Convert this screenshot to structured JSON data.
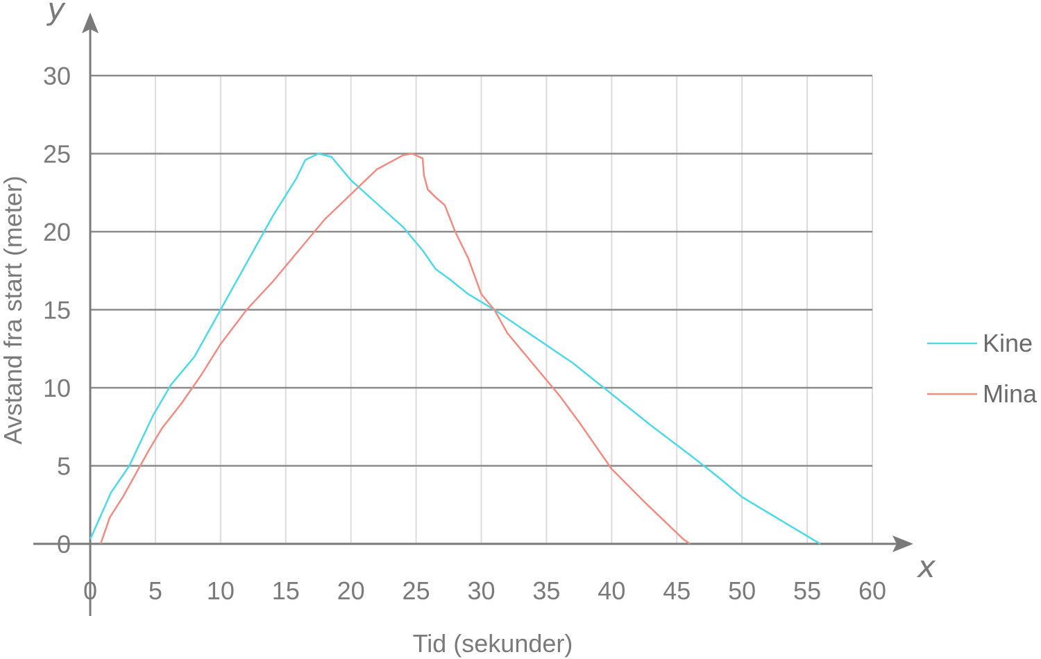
{
  "chart_data": {
    "type": "line",
    "xlabel": "Tid (sekunder)",
    "ylabel": "Avstand fra start (meter)",
    "x_axis_letter": "x",
    "y_axis_letter": "y",
    "xlim": [
      0,
      60
    ],
    "ylim": [
      0,
      30
    ],
    "x_ticks": [
      0,
      5,
      10,
      15,
      20,
      25,
      30,
      35,
      40,
      45,
      50,
      55,
      60
    ],
    "y_ticks": [
      0,
      5,
      10,
      15,
      20,
      25,
      30
    ],
    "grid": true,
    "legend_position": "right",
    "series": [
      {
        "name": "Kine",
        "color": "#4dd9e8",
        "points": [
          [
            0,
            0.3
          ],
          [
            1.6,
            3.3
          ],
          [
            3,
            5
          ],
          [
            4.8,
            8.2
          ],
          [
            6.2,
            10.2
          ],
          [
            8,
            12
          ],
          [
            10,
            15
          ],
          [
            12,
            18
          ],
          [
            14,
            21
          ],
          [
            15.8,
            23.4
          ],
          [
            16.5,
            24.6
          ],
          [
            17.5,
            25
          ],
          [
            18.5,
            24.8
          ],
          [
            20,
            23.3
          ],
          [
            22,
            21.8
          ],
          [
            24,
            20.3
          ],
          [
            25.5,
            18.8
          ],
          [
            26.5,
            17.6
          ],
          [
            27.5,
            17
          ],
          [
            29,
            16
          ],
          [
            31,
            15
          ],
          [
            34,
            13.3
          ],
          [
            37,
            11.6
          ],
          [
            40,
            9.6
          ],
          [
            43,
            7.6
          ],
          [
            46,
            5.7
          ],
          [
            48,
            4.4
          ],
          [
            50,
            3
          ],
          [
            52,
            2
          ],
          [
            54,
            1
          ],
          [
            56,
            0
          ]
        ]
      },
      {
        "name": "Mina",
        "color": "#f08c82",
        "points": [
          [
            0.8,
            0
          ],
          [
            1.5,
            1.7
          ],
          [
            2.5,
            3
          ],
          [
            3.5,
            4.5
          ],
          [
            4.5,
            6
          ],
          [
            5.5,
            7.4
          ],
          [
            7,
            9
          ],
          [
            8.5,
            10.8
          ],
          [
            10,
            12.8
          ],
          [
            12,
            15
          ],
          [
            14,
            16.8
          ],
          [
            16,
            18.8
          ],
          [
            18,
            20.8
          ],
          [
            20,
            22.4
          ],
          [
            22,
            24
          ],
          [
            24,
            24.9
          ],
          [
            24.7,
            25
          ],
          [
            25.5,
            24.7
          ],
          [
            25.6,
            23.6
          ],
          [
            25.9,
            22.7
          ],
          [
            26.5,
            22.2
          ],
          [
            27.2,
            21.7
          ],
          [
            28,
            20
          ],
          [
            29,
            18.3
          ],
          [
            30,
            16
          ],
          [
            31,
            15
          ],
          [
            32,
            13.5
          ],
          [
            34,
            11.5
          ],
          [
            36,
            9.5
          ],
          [
            37.5,
            7.8
          ],
          [
            40,
            4.8
          ],
          [
            42.5,
            2.7
          ],
          [
            44,
            1.5
          ],
          [
            45.5,
            0.3
          ],
          [
            46,
            0
          ]
        ]
      }
    ]
  }
}
